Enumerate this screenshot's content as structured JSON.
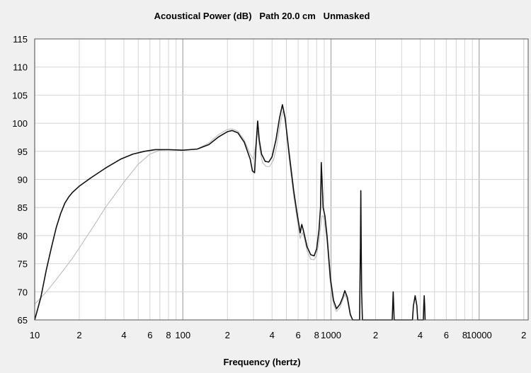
{
  "chart_data": {
    "type": "line",
    "title": "Acoustical Power (dB)   Path 20.0 cm   Unmasked",
    "xlabel": "Frequency (hertz)",
    "ylabel": "",
    "x_scale": "log",
    "xlim": [
      10,
      20000
    ],
    "ylim": [
      65,
      115
    ],
    "grid": true,
    "legend": "none",
    "y_ticks": [
      {
        "value": 65,
        "label": "65"
      },
      {
        "value": 70,
        "label": "70"
      },
      {
        "value": 75,
        "label": "75"
      },
      {
        "value": 80,
        "label": "80"
      },
      {
        "value": 85,
        "label": "85"
      },
      {
        "value": 90,
        "label": "90"
      },
      {
        "value": 95,
        "label": "95"
      },
      {
        "value": 100,
        "label": "100"
      },
      {
        "value": 105,
        "label": "105"
      },
      {
        "value": 110,
        "label": "110"
      },
      {
        "value": 115,
        "label": "115"
      }
    ],
    "x_ticks": [
      {
        "value": 10,
        "label": "10"
      },
      {
        "value": 20,
        "label": "2"
      },
      {
        "value": 40,
        "label": "4"
      },
      {
        "value": 60,
        "label": "6"
      },
      {
        "value": 80,
        "label": "8"
      },
      {
        "value": 100,
        "label": "100"
      },
      {
        "value": 200,
        "label": "2"
      },
      {
        "value": 400,
        "label": "4"
      },
      {
        "value": 600,
        "label": "6"
      },
      {
        "value": 800,
        "label": "8"
      },
      {
        "value": 1000,
        "label": "1000"
      },
      {
        "value": 2000,
        "label": "2"
      },
      {
        "value": 4000,
        "label": "4"
      },
      {
        "value": 6000,
        "label": "6"
      },
      {
        "value": 8000,
        "label": "8"
      },
      {
        "value": 10000,
        "label": "10000"
      },
      {
        "value": 20000,
        "label": "2"
      }
    ],
    "series": [
      {
        "color": "#111111",
        "width": 1.6,
        "points": [
          [
            10,
            65
          ],
          [
            11,
            69
          ],
          [
            12,
            74
          ],
          [
            13,
            78
          ],
          [
            14,
            81.5
          ],
          [
            15,
            84
          ],
          [
            16,
            85.8
          ],
          [
            17,
            86.9
          ],
          [
            18,
            87.7
          ],
          [
            20,
            88.8
          ],
          [
            24,
            90.3
          ],
          [
            30,
            92
          ],
          [
            38,
            93.6
          ],
          [
            46,
            94.5
          ],
          [
            55,
            95
          ],
          [
            65,
            95.3
          ],
          [
            80,
            95.3
          ],
          [
            100,
            95.2
          ],
          [
            125,
            95.4
          ],
          [
            150,
            96.2
          ],
          [
            175,
            97.6
          ],
          [
            200,
            98.5
          ],
          [
            215,
            98.7
          ],
          [
            235,
            98.3
          ],
          [
            260,
            96.6
          ],
          [
            285,
            93.6
          ],
          [
            295,
            91.5
          ],
          [
            305,
            91.2
          ],
          [
            312,
            96
          ],
          [
            320,
            100.4
          ],
          [
            328,
            97
          ],
          [
            340,
            94.5
          ],
          [
            360,
            93.2
          ],
          [
            380,
            93.1
          ],
          [
            400,
            94
          ],
          [
            425,
            97
          ],
          [
            450,
            101
          ],
          [
            470,
            103.3
          ],
          [
            490,
            101
          ],
          [
            520,
            95
          ],
          [
            560,
            88
          ],
          [
            590,
            84
          ],
          [
            620,
            80.5
          ],
          [
            635,
            82
          ],
          [
            650,
            81
          ],
          [
            690,
            78
          ],
          [
            730,
            76.6
          ],
          [
            770,
            76.4
          ],
          [
            800,
            77.6
          ],
          [
            830,
            81
          ],
          [
            850,
            85
          ],
          [
            860,
            93
          ],
          [
            870,
            90
          ],
          [
            885,
            85
          ],
          [
            910,
            83.5
          ],
          [
            940,
            80
          ],
          [
            960,
            77
          ],
          [
            990,
            72.5
          ],
          [
            1040,
            68.5
          ],
          [
            1090,
            67
          ],
          [
            1150,
            67.8
          ],
          [
            1200,
            69
          ],
          [
            1240,
            70.2
          ],
          [
            1290,
            69
          ],
          [
            1350,
            66
          ],
          [
            1400,
            65
          ],
          [
            1560,
            65
          ],
          [
            1570,
            72
          ],
          [
            1580,
            78
          ],
          [
            1590,
            88
          ],
          [
            1600,
            78
          ],
          [
            1610,
            70
          ],
          [
            1630,
            65
          ],
          [
            2590,
            65
          ],
          [
            2610,
            67.5
          ],
          [
            2630,
            70
          ],
          [
            2650,
            67.5
          ],
          [
            2670,
            65
          ],
          [
            3550,
            65
          ],
          [
            3600,
            67.5
          ],
          [
            3700,
            69.3
          ],
          [
            3800,
            67.5
          ],
          [
            3850,
            65
          ],
          [
            4200,
            65
          ],
          [
            4230,
            67.5
          ],
          [
            4260,
            69.3
          ],
          [
            4290,
            67.5
          ],
          [
            4320,
            65
          ]
        ]
      },
      {
        "color": "#bbbbbb",
        "width": 1.1,
        "points": [
          [
            10,
            67.8
          ],
          [
            12,
            70
          ],
          [
            14,
            72.2
          ],
          [
            16,
            74.2
          ],
          [
            18,
            76
          ],
          [
            20,
            77.8
          ],
          [
            25,
            81.7
          ],
          [
            30,
            85
          ],
          [
            40,
            89.5
          ],
          [
            50,
            92.7
          ],
          [
            60,
            94.5
          ],
          [
            70,
            95.2
          ],
          [
            80,
            95.3
          ],
          [
            100,
            95.2
          ],
          [
            125,
            95.4
          ],
          [
            150,
            96.5
          ],
          [
            175,
            98
          ],
          [
            200,
            98.9
          ],
          [
            215,
            99
          ],
          [
            235,
            98.6
          ],
          [
            260,
            97
          ],
          [
            285,
            94.5
          ],
          [
            300,
            93.6
          ],
          [
            310,
            96
          ],
          [
            320,
            98.6
          ],
          [
            330,
            95.5
          ],
          [
            345,
            93
          ],
          [
            365,
            92.3
          ],
          [
            385,
            92.3
          ],
          [
            410,
            93.5
          ],
          [
            430,
            96
          ],
          [
            455,
            100
          ],
          [
            475,
            102.2
          ],
          [
            495,
            100
          ],
          [
            520,
            94
          ],
          [
            560,
            87
          ],
          [
            590,
            83
          ],
          [
            620,
            79.5
          ],
          [
            640,
            80.5
          ],
          [
            655,
            80
          ],
          [
            690,
            77.3
          ],
          [
            730,
            75.8
          ],
          [
            770,
            75.7
          ],
          [
            800,
            76.5
          ],
          [
            830,
            79
          ],
          [
            850,
            81.5
          ],
          [
            870,
            83.5
          ],
          [
            890,
            83.5
          ],
          [
            910,
            82
          ],
          [
            940,
            79
          ],
          [
            960,
            76
          ],
          [
            990,
            71.5
          ],
          [
            1040,
            67.8
          ],
          [
            1090,
            66.5
          ],
          [
            1150,
            67.2
          ],
          [
            1200,
            68.5
          ],
          [
            1240,
            69.5
          ],
          [
            1290,
            68.5
          ],
          [
            1350,
            65.8
          ],
          [
            1400,
            65
          ]
        ]
      }
    ]
  }
}
